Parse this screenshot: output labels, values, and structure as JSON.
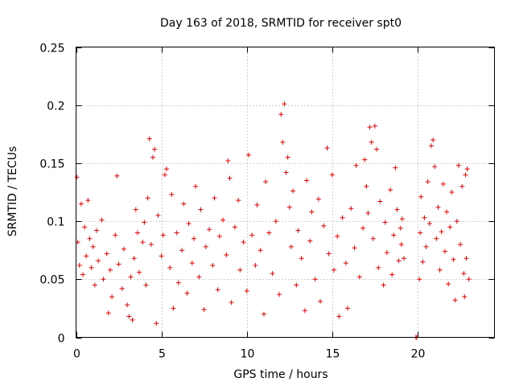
{
  "chart_data": {
    "type": "scatter",
    "title": "Day 163 of 2018, SRMTID for receiver spt0",
    "xlabel": "GPS time / hours",
    "ylabel": "SRMTID / TECUs",
    "xlim": [
      0,
      24.5
    ],
    "ylim": [
      0,
      0.25
    ],
    "xticks": [
      0,
      5,
      10,
      15,
      20
    ],
    "xtick_labels": [
      "0",
      "5",
      "10",
      "15",
      "20"
    ],
    "yticks": [
      0,
      0.05,
      0.1,
      0.15,
      0.2,
      0.25
    ],
    "ytick_labels": [
      "0",
      "0.05",
      "0.1",
      "0.15",
      "0.2",
      "0.25"
    ],
    "grid": true,
    "marker": "+",
    "color": "#ee0000",
    "series": [
      {
        "name": "SRMTID",
        "points": [
          [
            0.05,
            0.138
          ],
          [
            0.1,
            0.082
          ],
          [
            0.2,
            0.062
          ],
          [
            0.3,
            0.115
          ],
          [
            0.4,
            0.054
          ],
          [
            0.5,
            0.095
          ],
          [
            0.6,
            0.07
          ],
          [
            0.7,
            0.118
          ],
          [
            0.8,
            0.085
          ],
          [
            0.9,
            0.06
          ],
          [
            1.0,
            0.078
          ],
          [
            1.1,
            0.045
          ],
          [
            1.2,
            0.092
          ],
          [
            1.3,
            0.066
          ],
          [
            1.5,
            0.101
          ],
          [
            1.6,
            0.05
          ],
          [
            1.8,
            0.072
          ],
          [
            1.9,
            0.021
          ],
          [
            2.0,
            0.058
          ],
          [
            2.1,
            0.035
          ],
          [
            2.3,
            0.088
          ],
          [
            2.4,
            0.139
          ],
          [
            2.5,
            0.063
          ],
          [
            2.7,
            0.042
          ],
          [
            2.8,
            0.076
          ],
          [
            3.0,
            0.028
          ],
          [
            3.1,
            0.018
          ],
          [
            3.2,
            0.052
          ],
          [
            3.3,
            0.015
          ],
          [
            3.4,
            0.068
          ],
          [
            3.5,
            0.11
          ],
          [
            3.6,
            0.09
          ],
          [
            3.7,
            0.056
          ],
          [
            3.9,
            0.082
          ],
          [
            4.0,
            0.099
          ],
          [
            4.1,
            0.045
          ],
          [
            4.2,
            0.12
          ],
          [
            4.3,
            0.171
          ],
          [
            4.4,
            0.08
          ],
          [
            4.5,
            0.155
          ],
          [
            4.6,
            0.162
          ],
          [
            4.7,
            0.012
          ],
          [
            4.8,
            0.105
          ],
          [
            5.0,
            0.07
          ],
          [
            5.1,
            0.088
          ],
          [
            5.2,
            0.14
          ],
          [
            5.3,
            0.145
          ],
          [
            5.5,
            0.06
          ],
          [
            5.6,
            0.123
          ],
          [
            5.7,
            0.025
          ],
          [
            5.9,
            0.09
          ],
          [
            6.0,
            0.047
          ],
          [
            6.2,
            0.075
          ],
          [
            6.3,
            0.115
          ],
          [
            6.5,
            0.038
          ],
          [
            6.6,
            0.098
          ],
          [
            6.8,
            0.064
          ],
          [
            6.9,
            0.085
          ],
          [
            7.0,
            0.13
          ],
          [
            7.2,
            0.052
          ],
          [
            7.3,
            0.11
          ],
          [
            7.5,
            0.024
          ],
          [
            7.6,
            0.078
          ],
          [
            7.8,
            0.093
          ],
          [
            8.0,
            0.062
          ],
          [
            8.1,
            0.12
          ],
          [
            8.3,
            0.041
          ],
          [
            8.4,
            0.087
          ],
          [
            8.6,
            0.101
          ],
          [
            8.8,
            0.071
          ],
          [
            8.9,
            0.152
          ],
          [
            9.0,
            0.137
          ],
          [
            9.1,
            0.03
          ],
          [
            9.3,
            0.095
          ],
          [
            9.5,
            0.118
          ],
          [
            9.6,
            0.058
          ],
          [
            9.8,
            0.082
          ],
          [
            10.0,
            0.04
          ],
          [
            10.1,
            0.157
          ],
          [
            10.3,
            0.088
          ],
          [
            10.5,
            0.062
          ],
          [
            10.6,
            0.114
          ],
          [
            10.8,
            0.075
          ],
          [
            11.0,
            0.02
          ],
          [
            11.1,
            0.134
          ],
          [
            11.3,
            0.09
          ],
          [
            11.5,
            0.055
          ],
          [
            11.7,
            0.1
          ],
          [
            11.9,
            0.037
          ],
          [
            12.0,
            0.192
          ],
          [
            12.1,
            0.168
          ],
          [
            12.2,
            0.201
          ],
          [
            12.3,
            0.142
          ],
          [
            12.4,
            0.155
          ],
          [
            12.5,
            0.112
          ],
          [
            12.6,
            0.078
          ],
          [
            12.7,
            0.126
          ],
          [
            12.9,
            0.045
          ],
          [
            13.0,
            0.092
          ],
          [
            13.2,
            0.068
          ],
          [
            13.4,
            0.023
          ],
          [
            13.5,
            0.135
          ],
          [
            13.7,
            0.083
          ],
          [
            13.8,
            0.108
          ],
          [
            14.0,
            0.05
          ],
          [
            14.2,
            0.119
          ],
          [
            14.3,
            0.031
          ],
          [
            14.5,
            0.096
          ],
          [
            14.7,
            0.163
          ],
          [
            14.8,
            0.072
          ],
          [
            15.0,
            0.14
          ],
          [
            15.1,
            0.058
          ],
          [
            15.3,
            0.087
          ],
          [
            15.4,
            0.018
          ],
          [
            15.6,
            0.103
          ],
          [
            15.8,
            0.064
          ],
          [
            15.9,
            0.025
          ],
          [
            16.1,
            0.111
          ],
          [
            16.3,
            0.077
          ],
          [
            16.4,
            0.148
          ],
          [
            16.6,
            0.052
          ],
          [
            16.8,
            0.094
          ],
          [
            16.9,
            0.153
          ],
          [
            17.0,
            0.13
          ],
          [
            17.1,
            0.107
          ],
          [
            17.2,
            0.181
          ],
          [
            17.3,
            0.168
          ],
          [
            17.4,
            0.085
          ],
          [
            17.5,
            0.182
          ],
          [
            17.6,
            0.162
          ],
          [
            17.7,
            0.06
          ],
          [
            17.8,
            0.117
          ],
          [
            18.0,
            0.045
          ],
          [
            18.1,
            0.099
          ],
          [
            18.2,
            0.073
          ],
          [
            18.4,
            0.127
          ],
          [
            18.5,
            0.054
          ],
          [
            18.6,
            0.088
          ],
          [
            18.7,
            0.146
          ],
          [
            18.8,
            0.11
          ],
          [
            18.9,
            0.066
          ],
          [
            19.0,
            0.094
          ],
          [
            19.05,
            0.08
          ],
          [
            19.1,
            0.102
          ],
          [
            19.2,
            0.068
          ],
          [
            20.1,
            0.05
          ],
          [
            20.15,
            0.09
          ],
          [
            20.2,
            0.121
          ],
          [
            20.3,
            0.065
          ],
          [
            20.4,
            0.103
          ],
          [
            20.5,
            0.078
          ],
          [
            20.6,
            0.134
          ],
          [
            20.7,
            0.098
          ],
          [
            20.8,
            0.165
          ],
          [
            20.9,
            0.17
          ],
          [
            21.0,
            0.147
          ],
          [
            21.1,
            0.085
          ],
          [
            21.2,
            0.112
          ],
          [
            21.3,
            0.058
          ],
          [
            21.4,
            0.091
          ],
          [
            21.5,
            0.132
          ],
          [
            21.6,
            0.074
          ],
          [
            21.7,
            0.108
          ],
          [
            21.8,
            0.046
          ],
          [
            21.9,
            0.095
          ],
          [
            22.0,
            0.125
          ],
          [
            22.1,
            0.067
          ],
          [
            22.2,
            0.032
          ],
          [
            22.3,
            0.1
          ],
          [
            22.4,
            0.148
          ],
          [
            22.5,
            0.08
          ],
          [
            22.6,
            0.13
          ],
          [
            22.7,
            0.055
          ],
          [
            22.75,
            0.035
          ],
          [
            22.8,
            0.14
          ],
          [
            22.85,
            0.068
          ],
          [
            22.9,
            0.145
          ],
          [
            23.0,
            0.05
          ],
          [
            19.9,
            0.0
          ],
          [
            19.95,
            0.0
          ]
        ]
      }
    ]
  }
}
